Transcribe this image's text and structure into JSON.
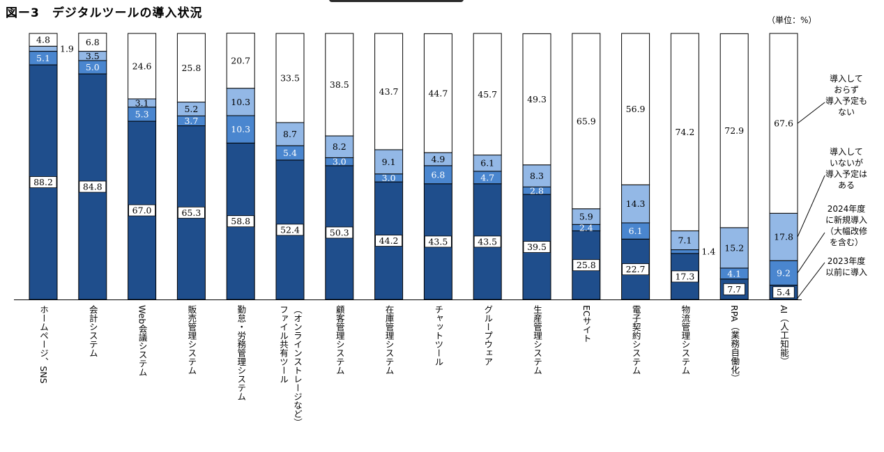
{
  "title": "図ー3　デジタルツールの導入状況",
  "unit_label": "（単位：%）",
  "chart_data": {
    "type": "bar",
    "stacked": true,
    "title": "図ー3　デジタルツールの導入状況",
    "ylabel": "%",
    "ylim": [
      0,
      100
    ],
    "categories": [
      "ホームページ、SNS",
      "会計システム",
      "Web会議システム",
      "販売管理システム",
      "勤怠・労務管理システム",
      "（オンラインストレージなど）ファイル共有ツール",
      "顧客管理システム",
      "在庫管理システム",
      "チャットツール",
      "グループウェア",
      "生産管理システム",
      "ECサイト",
      "電子契約システム",
      "物流管理システム",
      "RPA（業務自働化）",
      "AI（人工知能）"
    ],
    "category_lines": [
      [
        "ホームページ、SNS"
      ],
      [
        "会計システム"
      ],
      [
        "Web会議システム"
      ],
      [
        "販売管理システム"
      ],
      [
        "勤怠・労務管理システム"
      ],
      [
        "（オンラインストレージなど）",
        "ファイル共有ツール"
      ],
      [
        "顧客管理システム"
      ],
      [
        "在庫管理システム"
      ],
      [
        "チャットツール"
      ],
      [
        "グループウェア"
      ],
      [
        "生産管理システム"
      ],
      [
        "ECサイト"
      ],
      [
        "電子契約システム"
      ],
      [
        "物流管理システム"
      ],
      [
        "RPA（業務自働化）"
      ],
      [
        "AI（人工知能）"
      ]
    ],
    "series": [
      {
        "name": "2023年度以前に導入",
        "color": "#1f4e8c",
        "values": [
          88.2,
          84.8,
          67.0,
          65.3,
          58.8,
          52.4,
          50.3,
          44.2,
          43.5,
          43.5,
          39.5,
          25.8,
          22.7,
          17.3,
          7.7,
          5.4
        ]
      },
      {
        "name": "2024年度に新規導入（大幅改修を含む）",
        "color": "#4a86cf",
        "values": [
          5.1,
          5.0,
          5.3,
          3.7,
          10.3,
          5.4,
          3.0,
          3.0,
          6.8,
          4.7,
          2.8,
          2.4,
          6.1,
          1.4,
          4.1,
          9.2
        ]
      },
      {
        "name": "導入していないが導入予定はある",
        "color": "#93b8e6",
        "values": [
          1.9,
          3.5,
          3.1,
          5.2,
          10.3,
          8.7,
          8.2,
          9.1,
          4.9,
          6.1,
          8.3,
          5.9,
          14.3,
          7.1,
          15.2,
          17.8
        ]
      },
      {
        "name": "導入しておらず導入予定もない",
        "color": "#ffffff",
        "values": [
          4.8,
          6.8,
          24.6,
          25.8,
          20.7,
          33.5,
          38.5,
          43.7,
          44.7,
          45.7,
          49.3,
          65.9,
          56.9,
          74.2,
          72.9,
          67.6
        ]
      }
    ],
    "value_labels": [
      [
        "88.2",
        "84.8",
        "67.0",
        "65.3",
        "58.8",
        "52.4",
        "50.3",
        "44.2",
        "43.5",
        "43.5",
        "39.5",
        "25.8",
        "22.7",
        "17.3",
        "7.7",
        "5.4"
      ],
      [
        "5.1",
        "5.0",
        "5.3",
        "3.7",
        "10.3",
        "5.4",
        "3.0",
        "3.0",
        "6.8",
        "4.7",
        "2.8",
        "2.4",
        "6.1",
        "1.4",
        "4.1",
        "9.2"
      ],
      [
        "1.9",
        "3.5",
        "3.1",
        "5.2",
        "10.3",
        "8.7",
        "8.2",
        "9.1",
        "4.9",
        "6.1",
        "8.3",
        "5.9",
        "14.3",
        "7.1",
        "15.2",
        "17.8"
      ],
      [
        "4.8",
        "6.8",
        "24.6",
        "25.8",
        "20.7",
        "33.5",
        "38.5",
        "43.7",
        "44.7",
        "45.7",
        "49.3",
        "65.9",
        "56.9",
        "74.2",
        "72.9",
        "67.6"
      ]
    ],
    "legend": [
      {
        "series": 3,
        "text": "導入して\nおらず\n導入予定も\nない"
      },
      {
        "series": 2,
        "text": "導入して\nいないが\n導入予定は\nある"
      },
      {
        "series": 1,
        "text": "2024年度\nに新規導入\n（大幅改修\nを含む）"
      },
      {
        "series": 0,
        "text": "2023年度\n以前に導入"
      }
    ],
    "legend_placement": "right"
  }
}
